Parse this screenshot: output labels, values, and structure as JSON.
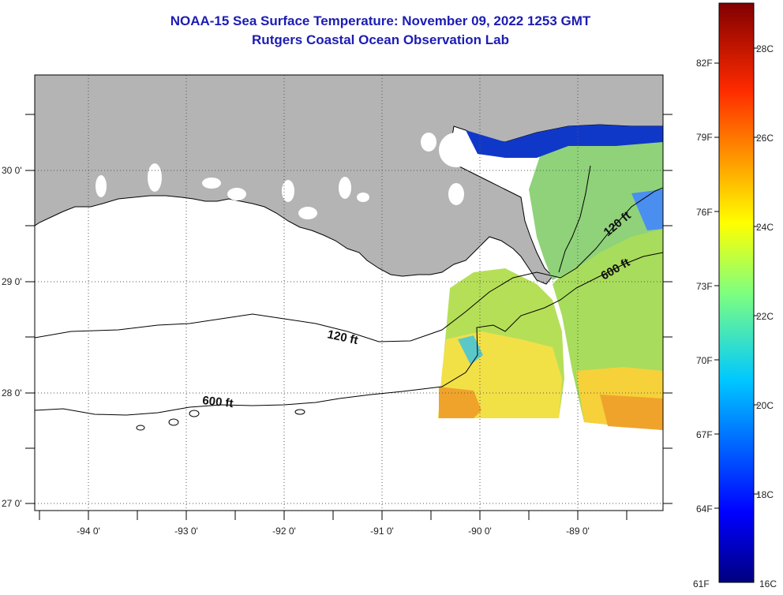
{
  "title": {
    "line1": "NOAA-15 Sea Surface Temperature:  November 09, 2022 1253 GMT",
    "line2": "Rutgers Coastal Ocean Observation Lab"
  },
  "map": {
    "lon_labels": [
      "-94 0'",
      "-93 0'",
      "-92 0'",
      "-91 0'",
      "-90 0'",
      "-89 0'"
    ],
    "lat_labels": [
      "30 0'",
      "29 0'",
      "28 0'",
      "27 0'"
    ],
    "contours": [
      {
        "label": "120 ft",
        "depth_ft": 120
      },
      {
        "label": "600 ft",
        "depth_ft": 600
      }
    ],
    "colors": {
      "land": "#b4b4b4",
      "ocean_nodata": "#ffffff",
      "coast": "#000000"
    }
  },
  "colorbar": {
    "f_labels": [
      "82F",
      "79F",
      "76F",
      "73F",
      "70F",
      "67F",
      "64F",
      "61F"
    ],
    "c_labels": [
      "28C",
      "26C",
      "24C",
      "22C",
      "20C",
      "18C",
      "16C"
    ],
    "range_c": [
      16,
      29
    ]
  }
}
